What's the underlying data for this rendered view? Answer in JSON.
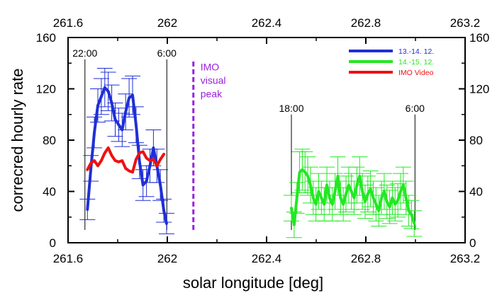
{
  "chart_data": {
    "type": "line",
    "xlabel": "solar longitude [deg]",
    "ylabel": "correcred hourly rate",
    "xlim": [
      261.6,
      263.2
    ],
    "ylim": [
      0,
      160
    ],
    "x_ticks": [
      "261.6",
      "262",
      "262.4",
      "262.8",
      "263.2"
    ],
    "y_ticks": [
      "0",
      "40",
      "80",
      "120",
      "160"
    ],
    "top_axis_mirrors_bottom": true,
    "right_axis_mirrors_left": true,
    "grid": false,
    "legend_position": "top-right",
    "series": [
      {
        "name": "13.-14. 12.",
        "color": "#1f2fd6",
        "x": [
          261.678,
          261.692,
          261.706,
          261.72,
          261.734,
          261.748,
          261.762,
          261.776,
          261.79,
          261.804,
          261.818,
          261.832,
          261.846,
          261.86,
          261.874,
          261.888,
          261.902,
          261.916,
          261.93,
          261.944,
          261.958,
          261.972,
          261.986,
          261.997
        ],
        "y": [
          26,
          58,
          86,
          107,
          114,
          121,
          118,
          109,
          96,
          92,
          88,
          102,
          113,
          115,
          92,
          63,
          45,
          48,
          60,
          74,
          60,
          45,
          25,
          15
        ],
        "err": [
          8,
          10,
          12,
          13,
          14,
          15,
          15,
          14,
          13,
          13,
          13,
          14,
          15,
          15,
          14,
          13,
          12,
          12,
          13,
          14,
          13,
          12,
          9,
          8
        ]
      },
      {
        "name": "14.-15. 12.",
        "color": "#22e822",
        "x": [
          262.5,
          262.511,
          262.522,
          262.533,
          262.544,
          262.555,
          262.566,
          262.577,
          262.588,
          262.599,
          262.61,
          262.621,
          262.632,
          262.643,
          262.654,
          262.665,
          262.676,
          262.687,
          262.698,
          262.709,
          262.72,
          262.731,
          262.742,
          262.753,
          262.764,
          262.775,
          262.786,
          262.797,
          262.808,
          262.819,
          262.83,
          262.841,
          262.852,
          262.863,
          262.874,
          262.885,
          262.896,
          262.907,
          262.918,
          262.929,
          262.94,
          262.951,
          262.962,
          262.973,
          262.984,
          262.995
        ],
        "y": [
          27,
          14,
          35,
          55,
          57,
          55,
          52,
          45,
          35,
          30,
          40,
          35,
          30,
          45,
          35,
          30,
          40,
          52,
          35,
          30,
          38,
          45,
          40,
          35,
          45,
          52,
          40,
          32,
          38,
          42,
          35,
          30,
          25,
          35,
          40,
          32,
          28,
          35,
          30,
          33,
          40,
          45,
          35,
          25,
          22,
          15
        ],
        "err": [
          10,
          10,
          12,
          16,
          16,
          16,
          15,
          14,
          13,
          13,
          14,
          13,
          13,
          14,
          13,
          13,
          14,
          15,
          13,
          13,
          14,
          14,
          14,
          13,
          14,
          15,
          14,
          13,
          14,
          14,
          13,
          13,
          12,
          13,
          14,
          13,
          13,
          13,
          13,
          13,
          14,
          14,
          13,
          12,
          11,
          10
        ]
      },
      {
        "name": "IMO Video",
        "color": "#ee1111",
        "x": [
          261.678,
          261.692,
          261.706,
          261.72,
          261.734,
          261.748,
          261.762,
          261.776,
          261.79,
          261.804,
          261.818,
          261.832,
          261.846,
          261.86,
          261.874,
          261.888,
          261.902,
          261.916,
          261.93,
          261.944,
          261.958,
          261.972,
          261.986
        ],
        "y": [
          57,
          62,
          64,
          60,
          64,
          70,
          74,
          68,
          64,
          63,
          64,
          58,
          56,
          55,
          65,
          70,
          71,
          66,
          64,
          65,
          60,
          65,
          69
        ]
      }
    ],
    "vertical_markers": [
      {
        "x": 261.668,
        "y_top": 143,
        "label": "22:00",
        "color": "#000000"
      },
      {
        "x": 261.998,
        "y_top": 143,
        "label": "6:00",
        "color": "#000000"
      },
      {
        "x": 262.5,
        "y_top": 100,
        "label": "18:00",
        "color": "#000000"
      },
      {
        "x": 262.998,
        "y_top": 100,
        "label": "6:00",
        "color": "#000000"
      }
    ],
    "imo_peak": {
      "x": 262.105,
      "y_range": [
        10,
        142
      ],
      "color": "#9b1fe0",
      "label_lines": [
        "IMO",
        "visual",
        "peak"
      ]
    }
  }
}
